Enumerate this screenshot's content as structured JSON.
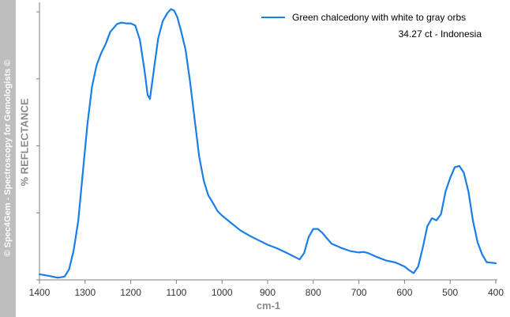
{
  "watermark": "© Spec4Gem - Spectroscopy for Gemologists ©",
  "chart_data": {
    "type": "line",
    "title": "",
    "xlabel": "cm-1",
    "ylabel": "% REFLECTANCE",
    "xlim": [
      1400,
      400
    ],
    "x_reversed": true,
    "xticks": [
      1400,
      1300,
      1200,
      1100,
      1000,
      900,
      800,
      700,
      600,
      500,
      400
    ],
    "y_tick_labels_shown": false,
    "ylim": [
      0,
      100
    ],
    "yticks": [
      0,
      25,
      50,
      75,
      100
    ],
    "grid": false,
    "legend_position": "top-right",
    "legend_subtitle": "34.27 ct - Indonesia",
    "colors": {
      "series": "#1a7ee6",
      "band": "#bdbdbd",
      "axis": "#7f7f7f"
    },
    "series": [
      {
        "name": "Green chalcedony with white to gray orbs",
        "x": [
          1400,
          1380,
          1360,
          1345,
          1335,
          1325,
          1315,
          1305,
          1295,
          1285,
          1275,
          1265,
          1255,
          1245,
          1230,
          1220,
          1210,
          1200,
          1190,
          1180,
          1170,
          1163,
          1158,
          1150,
          1140,
          1130,
          1120,
          1112,
          1105,
          1098,
          1090,
          1080,
          1070,
          1060,
          1050,
          1040,
          1030,
          1020,
          1010,
          1000,
          980,
          960,
          940,
          920,
          900,
          880,
          860,
          840,
          830,
          820,
          810,
          800,
          790,
          780,
          770,
          760,
          740,
          720,
          700,
          690,
          680,
          660,
          640,
          620,
          600,
          590,
          580,
          570,
          560,
          550,
          540,
          530,
          520,
          510,
          500,
          490,
          480,
          470,
          460,
          450,
          440,
          430,
          420,
          410,
          400
        ],
        "y": [
          2.1,
          1.5,
          0.8,
          1.2,
          4,
          11,
          22,
          40,
          58,
          72,
          80,
          84.5,
          88,
          92.5,
          95.5,
          96,
          95.7,
          95.7,
          94.9,
          89.5,
          78.5,
          69,
          67.5,
          77.5,
          90,
          96.5,
          99.5,
          101,
          100.5,
          98,
          93,
          86,
          74,
          60,
          46,
          37,
          31.5,
          28.8,
          25.7,
          24,
          21.2,
          18.5,
          16.5,
          14.8,
          13.1,
          11.8,
          10.2,
          8.5,
          7.6,
          10,
          16,
          19,
          19,
          17.5,
          15.5,
          13.5,
          12,
          10.8,
          10.2,
          10.4,
          10,
          8.5,
          7.2,
          6.5,
          5,
          3.6,
          2.5,
          5,
          12,
          20,
          23,
          22.2,
          24.5,
          33,
          38,
          42,
          42.5,
          40,
          33,
          22,
          14,
          9.5,
          6.6,
          6.4,
          6.2
        ]
      }
    ]
  }
}
